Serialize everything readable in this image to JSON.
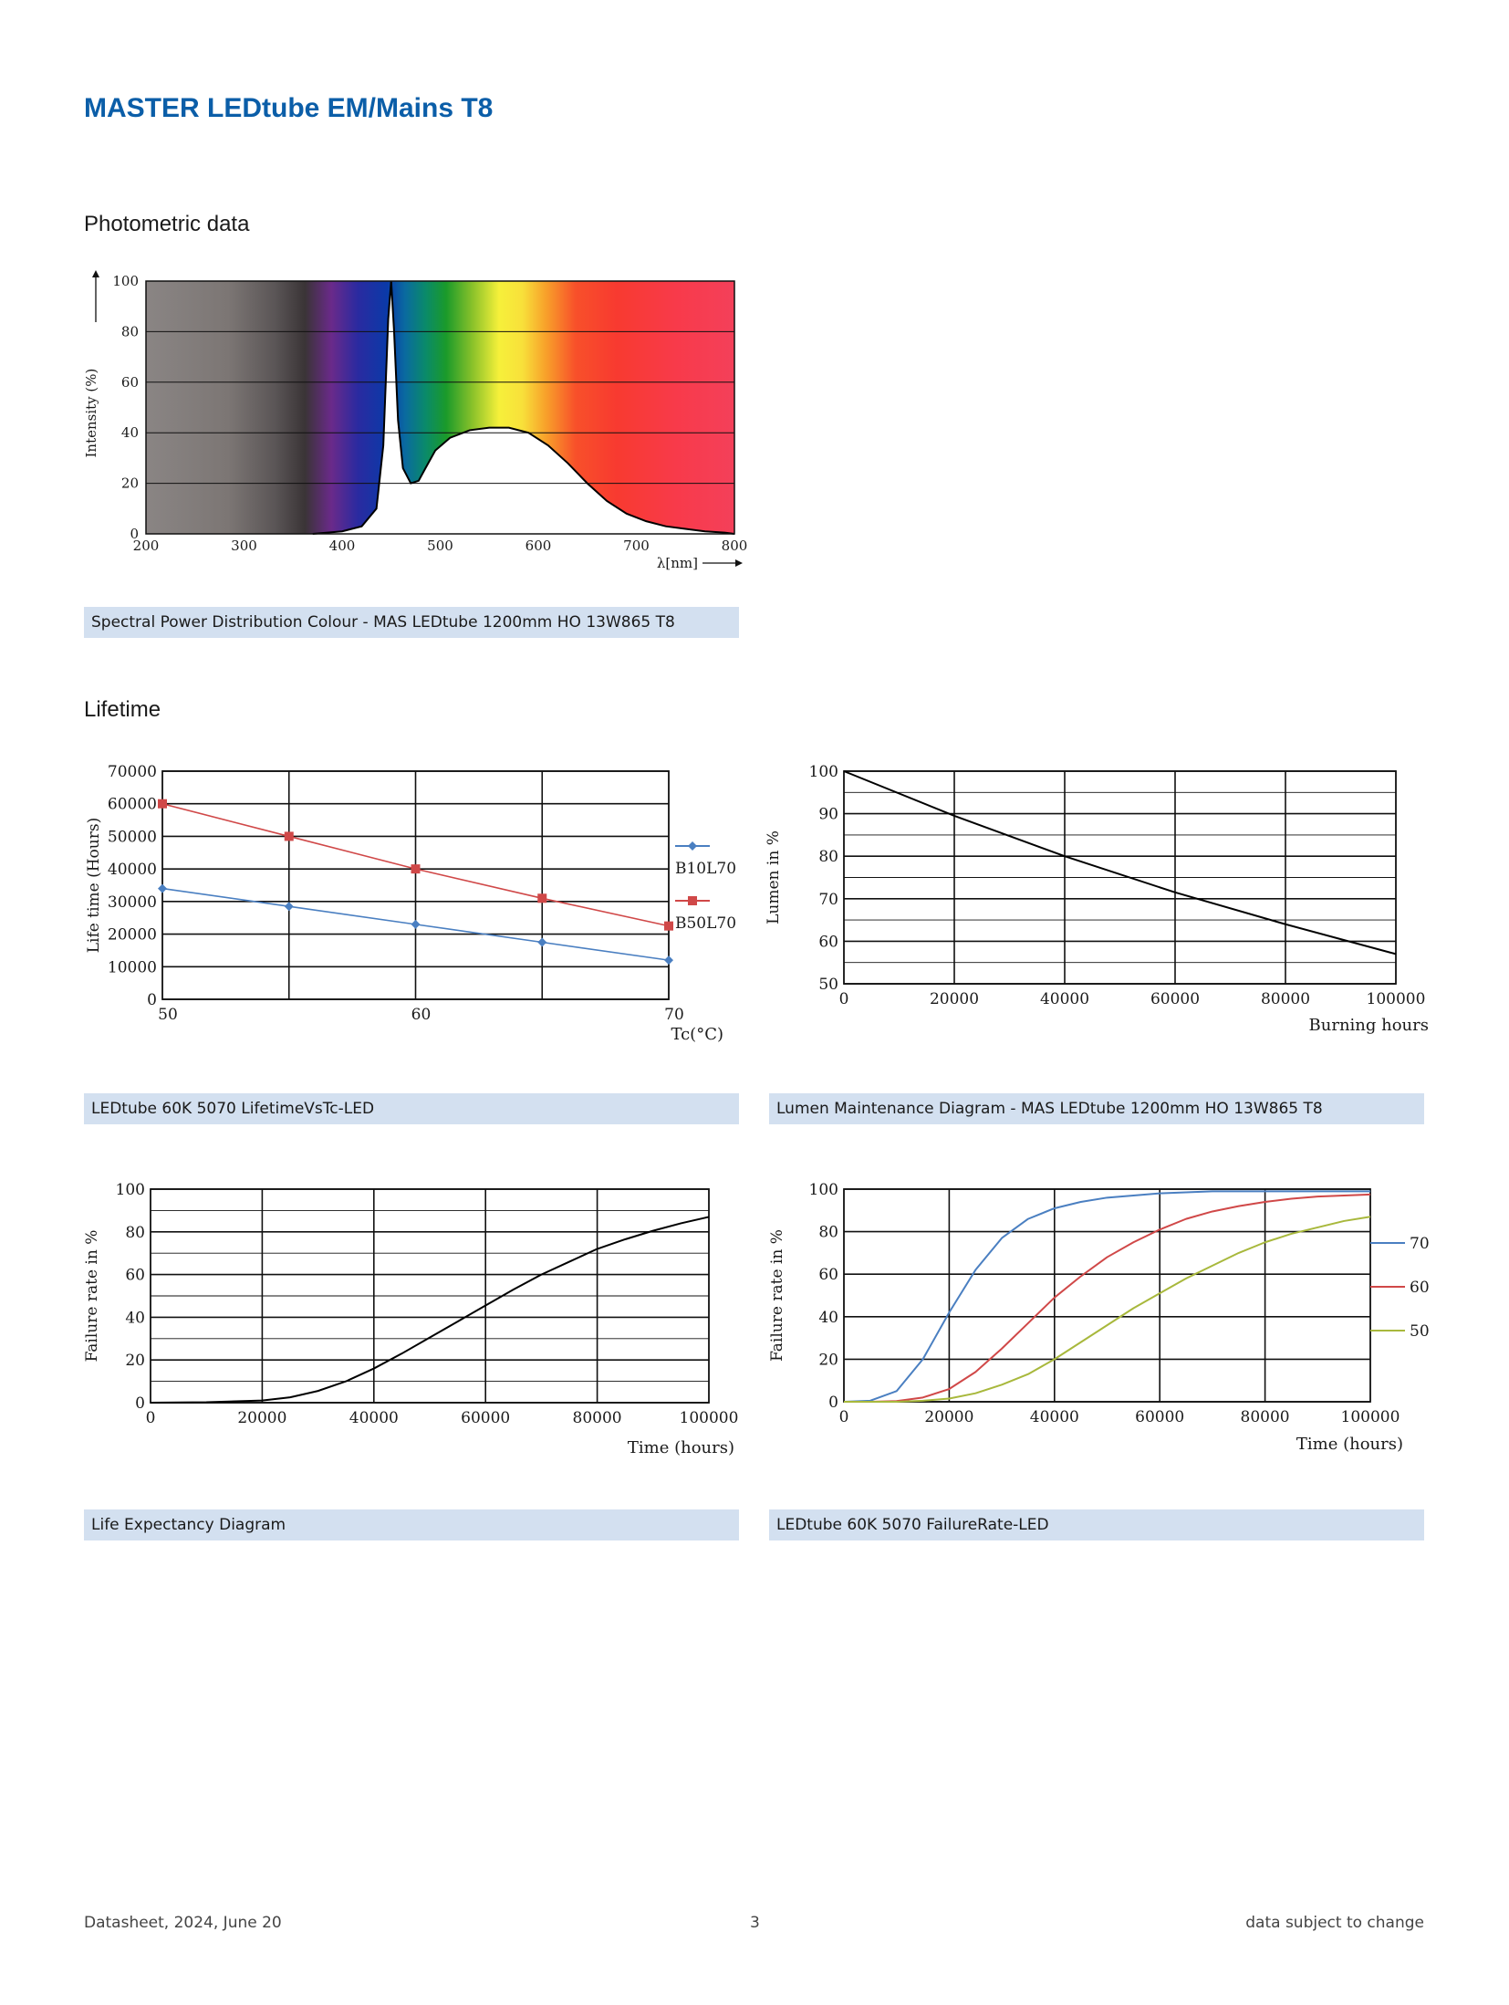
{
  "title": "MASTER LEDtube EM/Mains T8",
  "sections": {
    "photometric": "Photometric data",
    "lifetime": "Lifetime"
  },
  "captions": {
    "spd": "Spectral Power Distribution Colour - MAS LEDtube 1200mm HO 13W865 T8",
    "lifetime_vs_tc": "LEDtube 60K 5070 LifetimeVsTc-LED",
    "lumen": "Lumen Maintenance Diagram - MAS LEDtube 1200mm HO 13W865 T8",
    "life_expectancy": "Life Expectancy Diagram",
    "failure_rate": "LEDtube 60K 5070 FailureRate-LED"
  },
  "footer": {
    "left": "Datasheet, 2024, June 20",
    "center": "3",
    "right": "data subject to change"
  },
  "chart_data": [
    {
      "id": "spd",
      "type": "area",
      "xlabel": "λ[nm]",
      "ylabel": "Intensity (%)",
      "xlim": [
        200,
        800
      ],
      "ylim": [
        0,
        100
      ],
      "xticks": [
        200,
        300,
        400,
        500,
        600,
        700,
        800
      ],
      "yticks": [
        0,
        20,
        40,
        60,
        80,
        100
      ],
      "x": [
        370,
        400,
        420,
        435,
        442,
        447,
        450,
        453,
        457,
        462,
        470,
        478,
        485,
        495,
        510,
        530,
        550,
        570,
        590,
        610,
        630,
        650,
        670,
        690,
        710,
        730,
        750,
        770,
        790,
        800
      ],
      "y": [
        0,
        1,
        3,
        10,
        35,
        85,
        100,
        80,
        45,
        26,
        20,
        21,
        26,
        33,
        38,
        41,
        42,
        42,
        40,
        35,
        28,
        20,
        13,
        8,
        5,
        3,
        2,
        1,
        0.5,
        0
      ]
    },
    {
      "id": "lifetime_vs_tc",
      "type": "line",
      "xlabel": "Tc(°C)",
      "ylabel": "Life time (Hours)",
      "xlim": [
        50,
        70
      ],
      "ylim": [
        0,
        70000
      ],
      "xticks": [
        50,
        60,
        70
      ],
      "yticks": [
        0,
        10000,
        20000,
        30000,
        40000,
        50000,
        60000,
        70000
      ],
      "x": [
        50,
        55,
        60,
        65,
        70
      ],
      "series": [
        {
          "name": "B10L70",
          "color": "#4a7fc1",
          "values": [
            34000,
            28500,
            23000,
            17500,
            12000
          ]
        },
        {
          "name": "B50L70",
          "color": "#d04848",
          "values": [
            60000,
            50000,
            40000,
            31000,
            22500
          ]
        }
      ]
    },
    {
      "id": "lumen",
      "type": "line",
      "xlabel": "Burning hours",
      "ylabel": "Lumen in %",
      "xlim": [
        0,
        100000
      ],
      "ylim": [
        50,
        100
      ],
      "xticks": [
        0,
        20000,
        40000,
        60000,
        80000,
        100000
      ],
      "yticks": [
        50,
        60,
        70,
        80,
        90,
        100
      ],
      "x": [
        0,
        20000,
        40000,
        60000,
        80000,
        100000
      ],
      "series": [
        {
          "values": [
            100,
            89.5,
            80,
            71.5,
            64,
            57
          ]
        }
      ]
    },
    {
      "id": "life_expectancy",
      "type": "line",
      "xlabel": "Time (hours)",
      "ylabel": "Failure rate in %",
      "xlim": [
        0,
        100000
      ],
      "ylim": [
        0,
        100
      ],
      "xticks": [
        0,
        20000,
        40000,
        60000,
        80000,
        100000
      ],
      "yticks": [
        0,
        20,
        40,
        60,
        80,
        100
      ],
      "x": [
        0,
        10000,
        20000,
        25000,
        30000,
        35000,
        40000,
        45000,
        50000,
        55000,
        60000,
        65000,
        70000,
        75000,
        80000,
        85000,
        90000,
        95000,
        100000
      ],
      "series": [
        {
          "values": [
            0,
            0.2,
            1,
            2.5,
            5.5,
            10,
            16,
            23,
            30.5,
            38,
            45.5,
            53,
            60,
            66,
            72,
            76.5,
            80.5,
            84,
            87
          ]
        }
      ]
    },
    {
      "id": "failure_rate",
      "type": "line",
      "xlabel": "Time (hours)",
      "ylabel": "Failure rate in %",
      "xlim": [
        0,
        100000
      ],
      "ylim": [
        0,
        100
      ],
      "xticks": [
        0,
        20000,
        40000,
        60000,
        80000,
        100000
      ],
      "yticks": [
        0,
        20,
        40,
        60,
        80,
        100
      ],
      "x": [
        0,
        5000,
        10000,
        15000,
        20000,
        25000,
        30000,
        35000,
        40000,
        45000,
        50000,
        55000,
        60000,
        65000,
        70000,
        75000,
        80000,
        85000,
        90000,
        95000,
        100000
      ],
      "series": [
        {
          "name": "70",
          "color": "#4a7fc1",
          "values": [
            0,
            0.5,
            5,
            20,
            42,
            62,
            77,
            86,
            91,
            94,
            96,
            97,
            98,
            98.5,
            99,
            99,
            99,
            99,
            99,
            99,
            99
          ]
        },
        {
          "name": "60",
          "color": "#d04848",
          "values": [
            0,
            0,
            0.3,
            2,
            6,
            14,
            25,
            37,
            49,
            59,
            68,
            75,
            81,
            86,
            89.5,
            92,
            94,
            95.5,
            96.5,
            97,
            97.5
          ]
        },
        {
          "name": "50",
          "color": "#a8b83c",
          "values": [
            0,
            0,
            0,
            0.5,
            1.5,
            4,
            8,
            13,
            20,
            28,
            36,
            44,
            51,
            58,
            64,
            70,
            75,
            79,
            82,
            85,
            87
          ]
        }
      ]
    }
  ]
}
